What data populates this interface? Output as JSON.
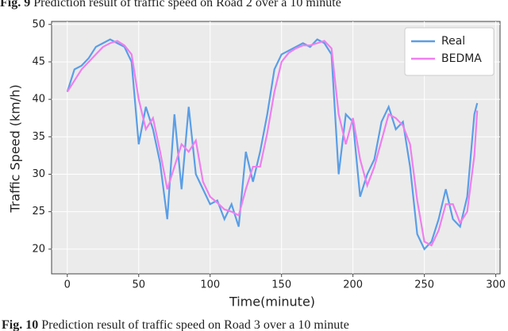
{
  "captions": [
    {
      "label": "Fig. 9",
      "text": "Prediction result of traffic speed on Road 2 over a 10 minute"
    },
    {
      "label": "Fig. 10",
      "text": "Prediction result of traffic speed on Road 3 over a 10 minute"
    }
  ],
  "chart_data": {
    "type": "line",
    "xlabel": "Time(minute)",
    "ylabel": "Traffic Speed (km/h)",
    "x": [
      0,
      5,
      10,
      15,
      20,
      25,
      30,
      35,
      40,
      45,
      50,
      55,
      60,
      65,
      70,
      75,
      80,
      85,
      90,
      95,
      100,
      105,
      110,
      115,
      120,
      125,
      130,
      135,
      140,
      145,
      150,
      155,
      160,
      165,
      170,
      175,
      180,
      185,
      190,
      195,
      200,
      205,
      210,
      215,
      220,
      225,
      230,
      235,
      240,
      245,
      250,
      255,
      260,
      265,
      270,
      275,
      280,
      285,
      287
    ],
    "series": [
      {
        "name": "Real",
        "color": "#5a9ee6",
        "values": [
          41,
          44,
          44.5,
          45.5,
          47,
          47.5,
          48,
          47.5,
          47,
          45,
          34,
          39,
          36,
          31.5,
          24,
          38,
          28,
          39,
          30,
          28,
          26,
          26.5,
          24,
          26,
          23,
          33,
          29,
          33,
          38,
          44,
          46,
          46.5,
          47,
          47.5,
          47,
          48,
          47.5,
          46,
          30,
          38,
          37,
          27,
          30,
          32,
          37,
          39,
          36,
          37,
          31,
          22,
          20,
          21,
          24,
          28,
          24,
          23,
          27,
          38,
          39.5
        ]
      },
      {
        "name": "BEDMA",
        "color": "#ee7fee",
        "values": [
          41,
          42.5,
          44,
          45,
          46,
          47,
          47.5,
          47.8,
          47.2,
          46,
          40,
          36,
          37.5,
          33,
          28,
          31,
          34,
          33,
          34.5,
          29,
          27,
          26.2,
          25.3,
          25,
          24.5,
          28,
          31,
          31,
          35.5,
          41,
          45,
          46.2,
          46.8,
          47.2,
          47.2,
          47.5,
          47.8,
          46.8,
          38,
          34,
          37.5,
          32,
          28.5,
          31,
          34.5,
          38,
          37.5,
          36.5,
          34,
          26.5,
          21,
          20.5,
          22.5,
          26,
          26,
          23.5,
          25,
          32.5,
          38.5
        ]
      }
    ],
    "xlim": [
      -11,
      303
    ],
    "ylim": [
      16.7,
      50.4
    ],
    "xticks": [
      0,
      50,
      100,
      150,
      200,
      250,
      300
    ],
    "yticks": [
      20,
      25,
      30,
      35,
      40,
      45,
      50
    ],
    "grid": true,
    "legend": "upper right"
  }
}
